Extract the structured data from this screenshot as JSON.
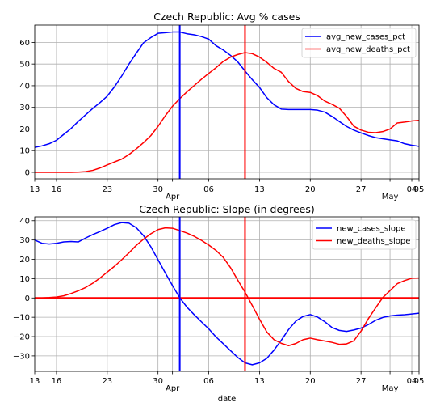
{
  "chart_data": [
    {
      "type": "line",
      "title": "Czech Republic: Avg % cases",
      "xlabel": "",
      "ylabel": "",
      "x_range": [
        "2020-03-13",
        "2020-05-05"
      ],
      "ylim": [
        -3,
        68
      ],
      "yticks": [
        0,
        10,
        20,
        30,
        40,
        50,
        60
      ],
      "xticks": [
        {
          "date": "2020-03-13",
          "label": "13"
        },
        {
          "date": "2020-03-16",
          "label": "16"
        },
        {
          "date": "2020-03-23",
          "label": "23"
        },
        {
          "date": "2020-03-30",
          "label": "30"
        },
        {
          "date": "2020-04-01",
          "label": "Apr"
        },
        {
          "date": "2020-04-06",
          "label": "06"
        },
        {
          "date": "2020-04-13",
          "label": "13"
        },
        {
          "date": "2020-04-20",
          "label": "20"
        },
        {
          "date": "2020-04-27",
          "label": "27"
        },
        {
          "date": "2020-05-01",
          "label": "May"
        },
        {
          "date": "2020-05-04",
          "label": "04"
        },
        {
          "date": "2020-05-05",
          "label": "05"
        }
      ],
      "grid": true,
      "legend_position": "top-right",
      "vlines": [
        {
          "date": "2020-04-02",
          "color": "#0000ff"
        },
        {
          "date": "2020-04-11",
          "color": "#ff0000"
        }
      ],
      "hlines": [],
      "x": [
        "2020-03-13",
        "2020-03-14",
        "2020-03-15",
        "2020-03-16",
        "2020-03-17",
        "2020-03-18",
        "2020-03-19",
        "2020-03-20",
        "2020-03-21",
        "2020-03-22",
        "2020-03-23",
        "2020-03-24",
        "2020-03-25",
        "2020-03-26",
        "2020-03-27",
        "2020-03-28",
        "2020-03-29",
        "2020-03-30",
        "2020-03-31",
        "2020-04-01",
        "2020-04-02",
        "2020-04-03",
        "2020-04-04",
        "2020-04-05",
        "2020-04-06",
        "2020-04-07",
        "2020-04-08",
        "2020-04-09",
        "2020-04-10",
        "2020-04-11",
        "2020-04-12",
        "2020-04-13",
        "2020-04-14",
        "2020-04-15",
        "2020-04-16",
        "2020-04-17",
        "2020-04-18",
        "2020-04-19",
        "2020-04-20",
        "2020-04-21",
        "2020-04-22",
        "2020-04-23",
        "2020-04-24",
        "2020-04-25",
        "2020-04-26",
        "2020-04-27",
        "2020-04-28",
        "2020-04-29",
        "2020-04-30",
        "2020-05-01",
        "2020-05-02",
        "2020-05-03",
        "2020-05-04",
        "2020-05-05"
      ],
      "series": [
        {
          "name": "avg_new_cases_pct",
          "color": "#0000ff",
          "values": [
            11.5,
            12.2,
            13.2,
            14.8,
            17.5,
            20.2,
            23.5,
            26.5,
            29.5,
            32.2,
            35.2,
            39.5,
            44.5,
            50.0,
            55.0,
            59.8,
            62.2,
            64.2,
            64.5,
            64.8,
            64.8,
            64.0,
            63.5,
            62.7,
            61.5,
            58.5,
            56.5,
            54.0,
            51.0,
            46.8,
            42.8,
            39.2,
            34.5,
            31.2,
            29.2,
            29.0,
            29.0,
            29.0,
            29.0,
            28.7,
            27.8,
            25.8,
            23.5,
            21.2,
            19.5,
            18.2,
            17.0,
            16.0,
            15.5,
            15.0,
            14.5,
            13.2,
            12.5,
            12.0
          ]
        },
        {
          "name": "avg_new_deaths_pct",
          "color": "#ff0000",
          "values": [
            0,
            0,
            0,
            0,
            0,
            0,
            0.1,
            0.3,
            0.9,
            2.0,
            3.4,
            4.8,
            6.1,
            8.2,
            10.8,
            13.7,
            16.9,
            21.2,
            26.1,
            30.5,
            34.0,
            37.2,
            40.1,
            43.0,
            45.7,
            48.3,
            51.2,
            53.2,
            54.4,
            55.3,
            54.8,
            53.2,
            50.8,
            48.0,
            46.2,
            41.9,
            38.8,
            37.3,
            36.9,
            35.4,
            32.9,
            31.4,
            29.6,
            25.8,
            21.3,
            19.5,
            18.5,
            18.3,
            18.8,
            20.0,
            22.8,
            23.2,
            23.7,
            24.0
          ]
        }
      ]
    },
    {
      "type": "line",
      "title": "Czech Republic: Slope (in degrees)",
      "xlabel": "date",
      "ylabel": "",
      "x_range": [
        "2020-03-13",
        "2020-05-05"
      ],
      "ylim": [
        -38,
        42
      ],
      "yticks": [
        -30,
        -20,
        -10,
        0,
        10,
        20,
        30,
        40
      ],
      "xticks": [
        {
          "date": "2020-03-13",
          "label": "13"
        },
        {
          "date": "2020-03-16",
          "label": "16"
        },
        {
          "date": "2020-03-23",
          "label": "23"
        },
        {
          "date": "2020-03-30",
          "label": "30"
        },
        {
          "date": "2020-04-01",
          "label": "Apr"
        },
        {
          "date": "2020-04-06",
          "label": "06"
        },
        {
          "date": "2020-04-13",
          "label": "13"
        },
        {
          "date": "2020-04-20",
          "label": "20"
        },
        {
          "date": "2020-04-27",
          "label": "27"
        },
        {
          "date": "2020-05-01",
          "label": "May"
        },
        {
          "date": "2020-05-04",
          "label": "04"
        },
        {
          "date": "2020-05-05",
          "label": "05"
        }
      ],
      "grid": true,
      "legend_position": "top-right",
      "vlines": [
        {
          "date": "2020-04-02",
          "color": "#0000ff"
        },
        {
          "date": "2020-04-11",
          "color": "#ff0000"
        }
      ],
      "hlines": [
        {
          "value": 0,
          "color": "#ff0000"
        }
      ],
      "x": [
        "2020-03-13",
        "2020-03-14",
        "2020-03-15",
        "2020-03-16",
        "2020-03-17",
        "2020-03-18",
        "2020-03-19",
        "2020-03-20",
        "2020-03-21",
        "2020-03-22",
        "2020-03-23",
        "2020-03-24",
        "2020-03-25",
        "2020-03-26",
        "2020-03-27",
        "2020-03-28",
        "2020-03-29",
        "2020-03-30",
        "2020-03-31",
        "2020-04-01",
        "2020-04-02",
        "2020-04-03",
        "2020-04-04",
        "2020-04-05",
        "2020-04-06",
        "2020-04-07",
        "2020-04-08",
        "2020-04-09",
        "2020-04-10",
        "2020-04-11",
        "2020-04-12",
        "2020-04-13",
        "2020-04-14",
        "2020-04-15",
        "2020-04-16",
        "2020-04-17",
        "2020-04-18",
        "2020-04-19",
        "2020-04-20",
        "2020-04-21",
        "2020-04-22",
        "2020-04-23",
        "2020-04-24",
        "2020-04-25",
        "2020-04-26",
        "2020-04-27",
        "2020-04-28",
        "2020-04-29",
        "2020-04-30",
        "2020-05-01",
        "2020-05-02",
        "2020-05-03",
        "2020-05-04",
        "2020-05-05"
      ],
      "series": [
        {
          "name": "new_cases_slope",
          "color": "#0000ff",
          "values": [
            30.0,
            28.3,
            27.9,
            28.3,
            29.0,
            29.2,
            29.0,
            31.0,
            32.8,
            34.4,
            36.1,
            38.0,
            39.0,
            38.7,
            36.4,
            32.3,
            26.6,
            19.8,
            13.0,
            6.4,
            0.1,
            -4.8,
            -8.7,
            -12.4,
            -16.0,
            -20.2,
            -23.7,
            -27.3,
            -30.8,
            -33.6,
            -34.6,
            -33.6,
            -31.3,
            -27.0,
            -21.9,
            -16.4,
            -12.0,
            -9.6,
            -8.6,
            -9.9,
            -12.3,
            -15.3,
            -16.8,
            -17.3,
            -16.6,
            -15.6,
            -13.8,
            -11.6,
            -10.1,
            -9.3,
            -8.9,
            -8.7,
            -8.3,
            -7.9
          ]
        },
        {
          "name": "new_deaths_slope",
          "color": "#ff0000",
          "values": [
            0,
            0,
            0.2,
            0.5,
            1.1,
            2.3,
            3.7,
            5.4,
            7.6,
            10.3,
            13.4,
            16.4,
            19.8,
            23.4,
            27.2,
            30.4,
            33.2,
            35.4,
            36.3,
            36.1,
            34.9,
            33.6,
            31.9,
            29.8,
            27.4,
            24.6,
            21.0,
            15.7,
            9.2,
            3.0,
            -3.9,
            -11.0,
            -17.6,
            -21.6,
            -23.5,
            -24.7,
            -23.6,
            -21.6,
            -20.8,
            -21.6,
            -22.3,
            -23.0,
            -24.0,
            -23.8,
            -22.2,
            -17.2,
            -10.8,
            -5.2,
            0.2,
            3.8,
            7.4,
            9.0,
            10.2,
            10.3
          ]
        }
      ]
    }
  ]
}
